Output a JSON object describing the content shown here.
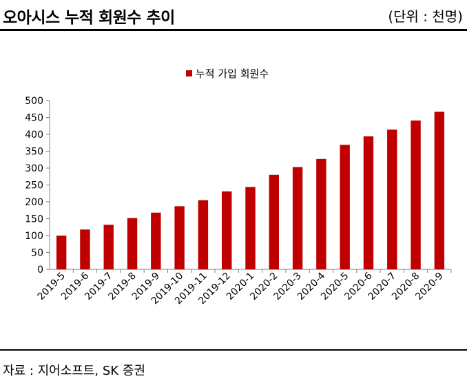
{
  "header": {
    "title": "오아시스 누적 회원수 추이",
    "unit": "(단위 : 천명)"
  },
  "footer": {
    "source": "자료 : 지어소프트, SK 증권"
  },
  "colors": {
    "bar": "#c00000",
    "axis": "#7f7f7f",
    "rule": "#000000"
  },
  "chart_data": {
    "type": "bar",
    "title": "",
    "xlabel": "",
    "ylabel": "",
    "categories": [
      "2019-5",
      "2019-6",
      "2019-7",
      "2019-8",
      "2019-9",
      "2019-10",
      "2019-11",
      "2019-12",
      "2020-1",
      "2020-2",
      "2020-3",
      "2020-4",
      "2020-5",
      "2020-6",
      "2020-7",
      "2020-8",
      "2020-9"
    ],
    "series": [
      {
        "name": "누적 가입 회원수",
        "values": [
          100,
          118,
          132,
          152,
          168,
          187,
          205,
          231,
          244,
          280,
          303,
          327,
          369,
          394,
          414,
          441,
          467
        ]
      }
    ],
    "ylim": [
      0,
      500
    ],
    "yticks": [
      0,
      50,
      100,
      150,
      200,
      250,
      300,
      350,
      400,
      450,
      500
    ],
    "grid": false,
    "legend_position": "top"
  }
}
